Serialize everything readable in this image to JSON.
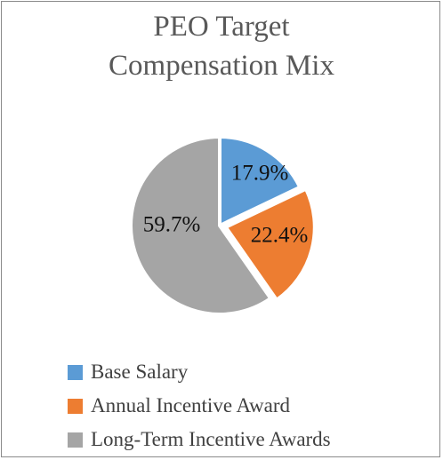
{
  "chart_data": {
    "type": "pie",
    "title_lines": [
      "PEO Target",
      "Compensation Mix"
    ],
    "slices": [
      {
        "name": "Base Salary",
        "value": 17.9,
        "label": "17.9%",
        "color": "#5b9bd5",
        "exploded": false
      },
      {
        "name": "Annual Incentive Award",
        "value": 22.4,
        "label": "22.4%",
        "color": "#ed7d31",
        "exploded": true
      },
      {
        "name": "Long-Term Incentive Awards",
        "value": 59.7,
        "label": "59.7%",
        "color": "#a5a5a5",
        "exploded": false
      }
    ],
    "legend_position": "bottom",
    "start_angle_deg": 0,
    "direction": "clockwise"
  }
}
